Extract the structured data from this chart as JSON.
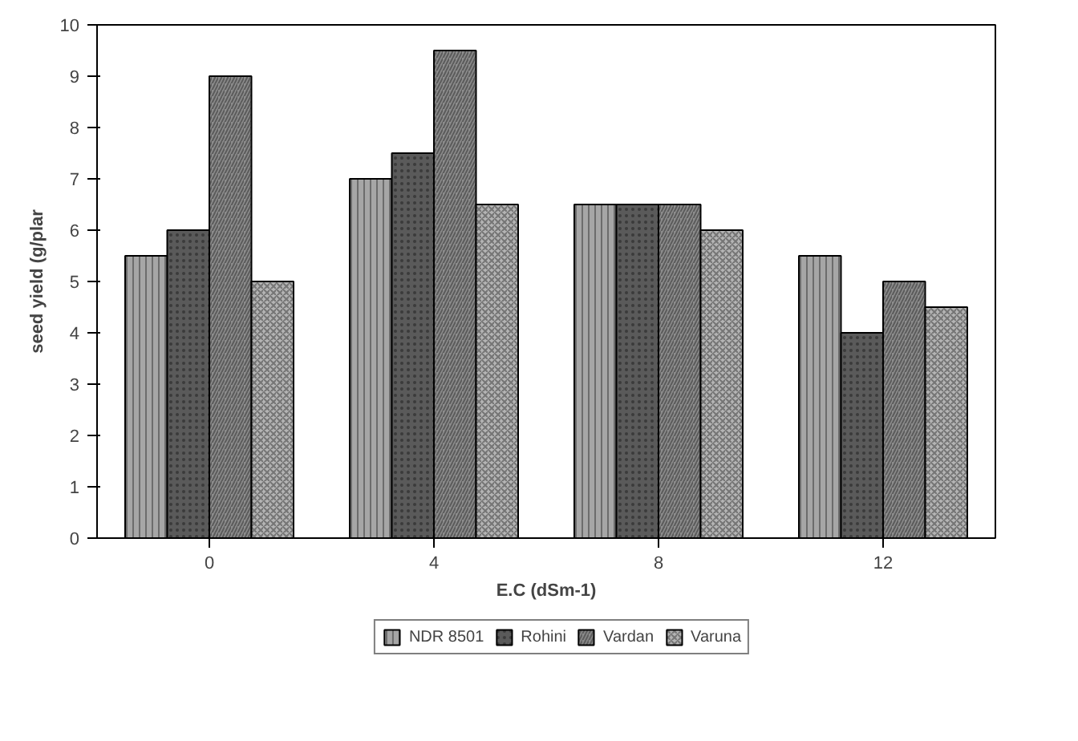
{
  "chart_data": {
    "type": "bar",
    "xlabel": "E.C (dSm-1)",
    "ylabel": "seed yield (g/plar",
    "categories": [
      "0",
      "4",
      "8",
      "12"
    ],
    "series": [
      {
        "name": "NDR 8501",
        "color": "#a6a6a6",
        "values": [
          5.5,
          7,
          6.5,
          5.5
        ]
      },
      {
        "name": "Rohini",
        "color": "#5a5a5a",
        "values": [
          6,
          7.5,
          6.5,
          4
        ]
      },
      {
        "name": "Vardan",
        "color": "#8c8c8c",
        "values": [
          9,
          9.5,
          6.5,
          5
        ]
      },
      {
        "name": "Varuna",
        "color": "#b4b4b4",
        "values": [
          5,
          6.5,
          6,
          4.5
        ]
      }
    ],
    "ylim": [
      0,
      10
    ],
    "yticks": [
      0,
      1,
      2,
      3,
      4,
      5,
      6,
      7,
      8,
      9,
      10
    ],
    "grid": false,
    "legend": "bottom"
  }
}
